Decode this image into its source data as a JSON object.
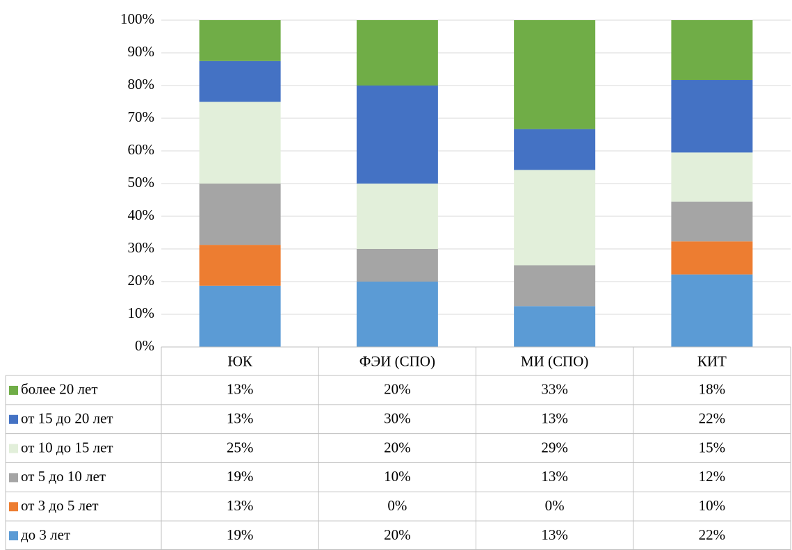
{
  "chart_data": {
    "type": "bar",
    "stacked": true,
    "categories": [
      "ЮК",
      "ФЭИ (СПО)",
      "МИ (СПО)",
      "КИТ"
    ],
    "series": [
      {
        "name": "до 3 лет",
        "color": "#5b9bd5",
        "values": [
          18.75,
          20,
          12.5,
          22.2
        ],
        "value_labels": [
          "19%",
          "20%",
          "13%",
          "22%"
        ]
      },
      {
        "name": "от 3 до 5 лет",
        "color": "#ed7d31",
        "values": [
          12.5,
          0,
          0,
          10.1
        ],
        "value_labels": [
          "13%",
          "0%",
          "0%",
          "10%"
        ]
      },
      {
        "name": "от 5 до 10 лет",
        "color": "#a5a5a5",
        "values": [
          18.75,
          10,
          12.5,
          12.2
        ],
        "value_labels": [
          "19%",
          "10%",
          "13%",
          "12%"
        ]
      },
      {
        "name": "от 10 до 15 лет",
        "color": "#e2efda",
        "values": [
          25,
          20,
          29.17,
          15
        ],
        "value_labels": [
          "25%",
          "20%",
          "29%",
          "15%"
        ]
      },
      {
        "name": "от 15 до 20 лет",
        "color": "#4472c4",
        "values": [
          12.5,
          30,
          12.5,
          22.2
        ],
        "value_labels": [
          "13%",
          "30%",
          "13%",
          "22%"
        ]
      },
      {
        "name": "более 20 лет",
        "color": "#70ad47",
        "values": [
          12.5,
          20,
          33.33,
          18.3
        ],
        "value_labels": [
          "13%",
          "20%",
          "33%",
          "18%"
        ]
      }
    ],
    "ylim": [
      0,
      100
    ],
    "yticks": [
      {
        "value": 0,
        "label": "0%"
      },
      {
        "value": 10,
        "label": "10%"
      },
      {
        "value": 20,
        "label": "20%"
      },
      {
        "value": 30,
        "label": "30%"
      },
      {
        "value": 40,
        "label": "40%"
      },
      {
        "value": 50,
        "label": "50%"
      },
      {
        "value": 60,
        "label": "60%"
      },
      {
        "value": 70,
        "label": "70%"
      },
      {
        "value": 80,
        "label": "80%"
      },
      {
        "value": 90,
        "label": "90%"
      },
      {
        "value": 100,
        "label": "100%"
      }
    ],
    "grid": true,
    "data_table": true
  }
}
